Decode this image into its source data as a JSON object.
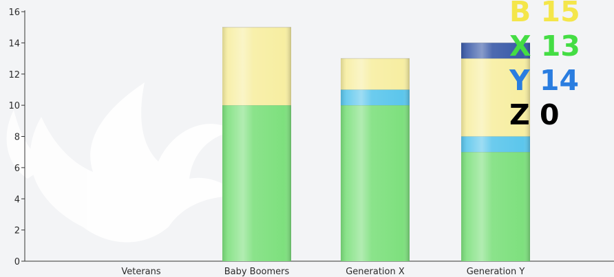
{
  "chart_data": {
    "type": "bar",
    "stacked": true,
    "categories": [
      "Veterans",
      "Baby Boomers",
      "Generation X",
      "Generation Y"
    ],
    "ylim": [
      0,
      16
    ],
    "yticks": [
      0,
      2,
      4,
      6,
      8,
      10,
      12,
      14,
      16
    ],
    "series": [
      {
        "color": "#7ee07e",
        "values": [
          0,
          10,
          10,
          7
        ]
      },
      {
        "color": "#5cc6ec",
        "values": [
          0,
          0,
          1,
          1
        ]
      },
      {
        "color": "#f7eea2",
        "values": [
          0,
          5,
          2,
          5
        ]
      },
      {
        "color": "#3a5aa8",
        "values": [
          0,
          0,
          0,
          1
        ]
      }
    ],
    "legend": [
      {
        "letter": "B",
        "value": "15",
        "color": "#f4e64a"
      },
      {
        "letter": "X",
        "value": "13",
        "color": "#44dd44"
      },
      {
        "letter": "Y",
        "value": "14",
        "color": "#2a7de0"
      },
      {
        "letter": "Z",
        "value": "0",
        "color": "#000000"
      }
    ],
    "grid": false,
    "legend_position": "top-right"
  }
}
